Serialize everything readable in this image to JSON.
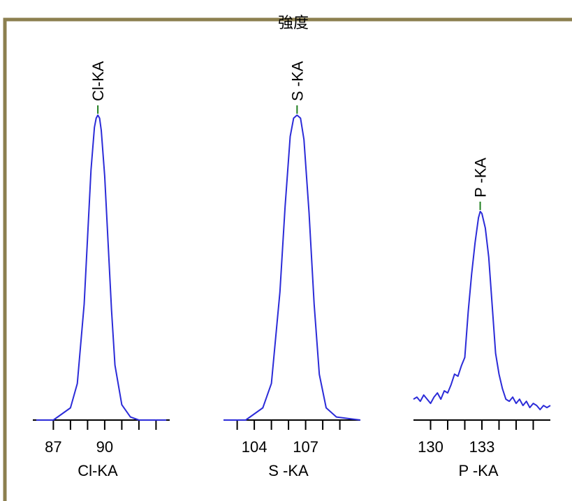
{
  "title": "強度",
  "colors": {
    "frame": "#8c7f4f",
    "spectrum": "#2b2bd8",
    "marker": "#1f7f1f"
  },
  "chart_data": [
    {
      "type": "line",
      "xlabel": "Cl-KA",
      "xlim": [
        85.8,
        93.8
      ],
      "xticks": [
        87,
        88,
        89,
        90,
        91,
        92,
        93
      ],
      "tick_labels": [
        {
          "value": 87,
          "text": "87"
        },
        {
          "value": 90,
          "text": "90"
        }
      ],
      "peak_label": "Cl-KA",
      "peak_x": 89.6,
      "x": [
        86.0,
        87.0,
        88.0,
        88.4,
        88.8,
        89.0,
        89.2,
        89.4,
        89.5,
        89.6,
        89.7,
        89.8,
        90.0,
        90.2,
        90.4,
        90.6,
        91.0,
        91.5,
        92.0,
        93.6
      ],
      "y": [
        0.0,
        0.0,
        0.04,
        0.12,
        0.38,
        0.6,
        0.82,
        0.96,
        0.99,
        1.0,
        0.99,
        0.95,
        0.8,
        0.58,
        0.36,
        0.18,
        0.05,
        0.01,
        0.0,
        0.0
      ]
    },
    {
      "type": "line",
      "xlabel": "S -KA",
      "xlim": [
        102.2,
        110.2
      ],
      "xticks": [
        103,
        104,
        105,
        106,
        107,
        108,
        109
      ],
      "tick_labels": [
        {
          "value": 104,
          "text": "104"
        },
        {
          "value": 107,
          "text": "107"
        }
      ],
      "peak_label": "S -KA",
      "peak_x": 106.5,
      "x": [
        102.2,
        103.5,
        104.5,
        105.0,
        105.5,
        105.8,
        106.1,
        106.3,
        106.5,
        106.7,
        106.9,
        107.2,
        107.5,
        107.8,
        108.2,
        108.8,
        110.2
      ],
      "y": [
        0.0,
        0.0,
        0.04,
        0.12,
        0.42,
        0.7,
        0.93,
        0.99,
        1.0,
        0.99,
        0.92,
        0.68,
        0.38,
        0.15,
        0.04,
        0.01,
        0.0
      ]
    },
    {
      "type": "line",
      "xlabel": "P -KA",
      "xlim": [
        129.0,
        137.0
      ],
      "xticks": [
        130,
        131,
        132,
        133,
        134,
        135,
        136
      ],
      "tick_labels": [
        {
          "value": 130,
          "text": "130"
        },
        {
          "value": 133,
          "text": "133"
        }
      ],
      "peak_label": "P -KA",
      "peak_x": 132.9,
      "x": [
        129.0,
        129.2,
        129.4,
        129.6,
        129.8,
        130.0,
        130.2,
        130.4,
        130.6,
        130.8,
        131.0,
        131.2,
        131.4,
        131.6,
        131.8,
        132.0,
        132.2,
        132.4,
        132.6,
        132.8,
        132.9,
        133.0,
        133.2,
        133.4,
        133.6,
        133.8,
        134.0,
        134.2,
        134.4,
        134.6,
        134.8,
        135.0,
        135.2,
        135.4,
        135.6,
        135.8,
        136.0,
        136.2,
        136.4,
        136.6,
        136.8,
        137.0
      ],
      "y": [
        0.1,
        0.11,
        0.09,
        0.12,
        0.1,
        0.08,
        0.11,
        0.13,
        0.1,
        0.14,
        0.13,
        0.17,
        0.22,
        0.21,
        0.26,
        0.3,
        0.52,
        0.7,
        0.85,
        0.97,
        1.0,
        0.99,
        0.92,
        0.78,
        0.55,
        0.32,
        0.22,
        0.15,
        0.1,
        0.09,
        0.11,
        0.08,
        0.1,
        0.07,
        0.09,
        0.06,
        0.08,
        0.07,
        0.05,
        0.07,
        0.06,
        0.07
      ]
    }
  ]
}
